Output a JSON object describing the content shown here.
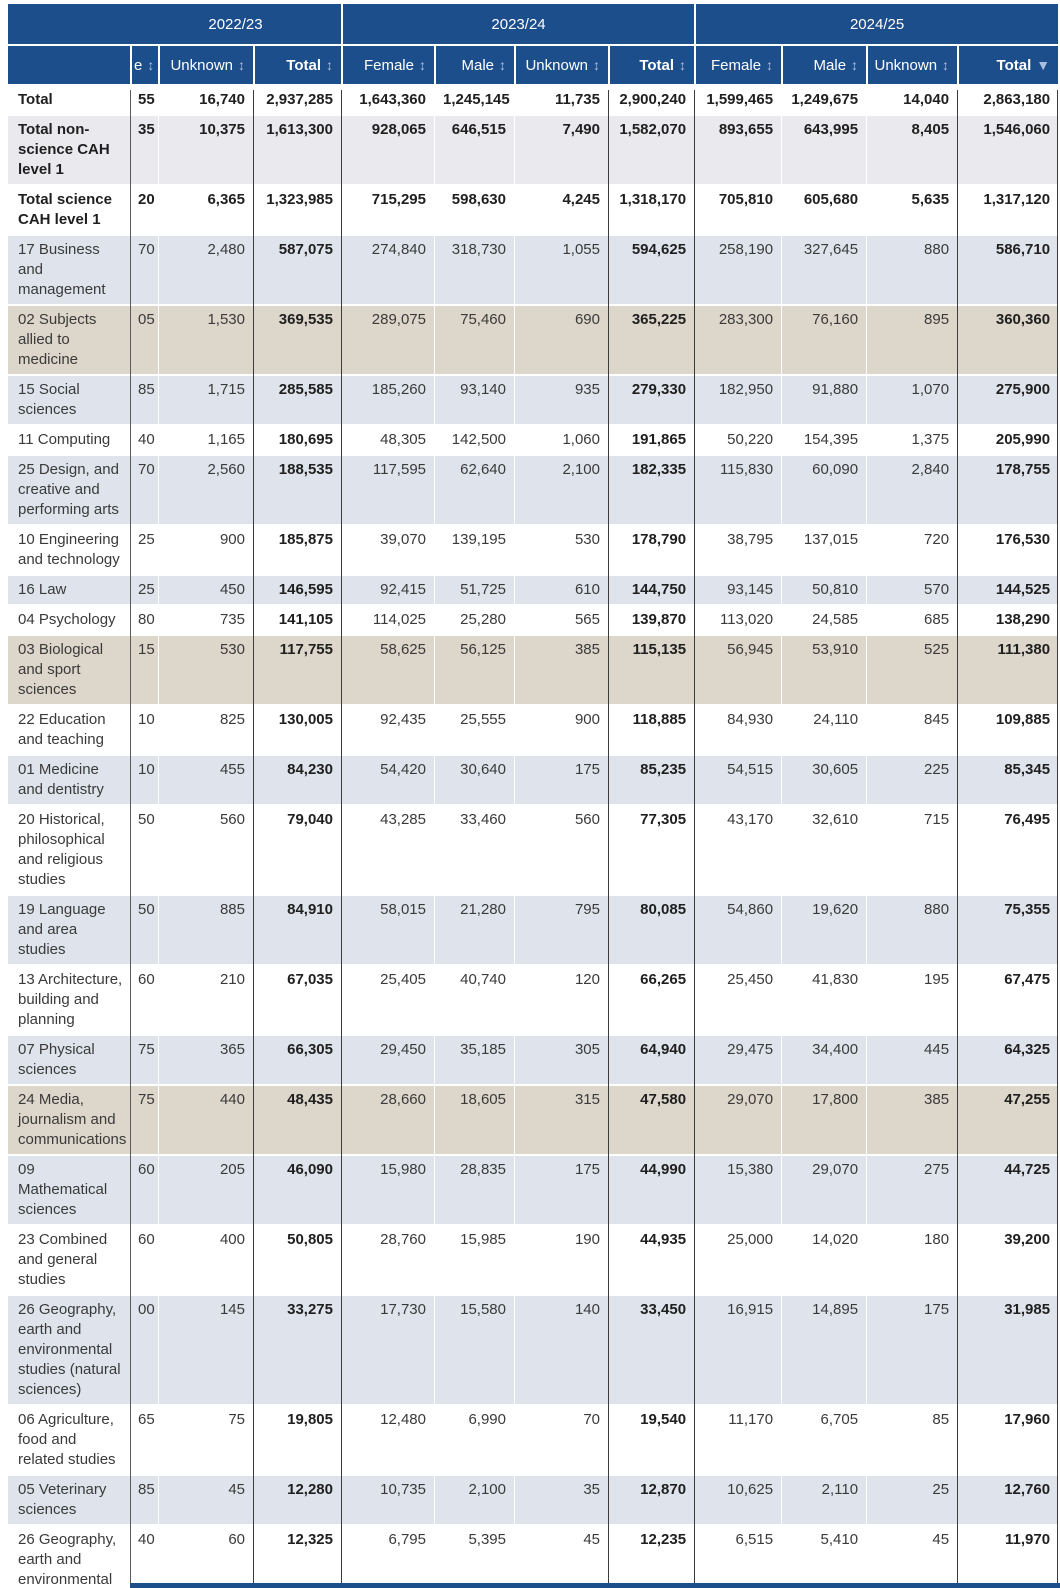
{
  "colors": {
    "header_bg": "#1d4e8c",
    "row_shaded_blue": "#dfe4ec",
    "row_shaded_tan": "#ddd6ca",
    "row_shaded_gray": "#e9e9ee",
    "sort_arrow": "#aabfdd"
  },
  "icons": {
    "sort_both": "↕",
    "sort_desc": "▼"
  },
  "table": {
    "year_groups": [
      {
        "label": "2022/23",
        "span": 3
      },
      {
        "label": "2023/24",
        "span": 4
      },
      {
        "label": "2024/25",
        "span": 4
      }
    ],
    "columns": [
      {
        "label": "e",
        "arrow": "both",
        "emphasis": false
      },
      {
        "label": "Unknown",
        "arrow": "both",
        "emphasis": false
      },
      {
        "label": "Total",
        "arrow": "both",
        "emphasis": true
      },
      {
        "label": "Female",
        "arrow": "both",
        "emphasis": false
      },
      {
        "label": "Male",
        "arrow": "both",
        "emphasis": false
      },
      {
        "label": "Unknown",
        "arrow": "both",
        "emphasis": false
      },
      {
        "label": "Total",
        "arrow": "both",
        "emphasis": true
      },
      {
        "label": "Female",
        "arrow": "both",
        "emphasis": false
      },
      {
        "label": "Male",
        "arrow": "both",
        "emphasis": false
      },
      {
        "label": "Unknown",
        "arrow": "both",
        "emphasis": false
      },
      {
        "label": "Total",
        "arrow": "desc",
        "emphasis": true
      }
    ],
    "rows": [
      {
        "label": "Total",
        "bold": true,
        "bg": "plain",
        "values": [
          "55",
          "16,740",
          "2,937,285",
          "1,643,360",
          "1,245,145",
          "11,735",
          "2,900,240",
          "1,599,465",
          "1,249,675",
          "14,040",
          "2,863,180"
        ]
      },
      {
        "label": "Total non-science CAH level 1",
        "bold": true,
        "bg": "gray",
        "values": [
          "35",
          "10,375",
          "1,613,300",
          "928,065",
          "646,515",
          "7,490",
          "1,582,070",
          "893,655",
          "643,995",
          "8,405",
          "1,546,060"
        ]
      },
      {
        "label": "Total science CAH level 1",
        "bold": true,
        "bg": "plain",
        "values": [
          "20",
          "6,365",
          "1,323,985",
          "715,295",
          "598,630",
          "4,245",
          "1,318,170",
          "705,810",
          "605,680",
          "5,635",
          "1,317,120"
        ]
      },
      {
        "label": "17 Business and management",
        "bold": false,
        "bg": "blue",
        "values": [
          "70",
          "2,480",
          "587,075",
          "274,840",
          "318,730",
          "1,055",
          "594,625",
          "258,190",
          "327,645",
          "880",
          "586,710"
        ]
      },
      {
        "label": "02 Subjects allied to medicine",
        "bold": false,
        "bg": "tan",
        "values": [
          "05",
          "1,530",
          "369,535",
          "289,075",
          "75,460",
          "690",
          "365,225",
          "283,300",
          "76,160",
          "895",
          "360,360"
        ]
      },
      {
        "label": "15 Social sciences",
        "bold": false,
        "bg": "blue",
        "values": [
          "85",
          "1,715",
          "285,585",
          "185,260",
          "93,140",
          "935",
          "279,330",
          "182,950",
          "91,880",
          "1,070",
          "275,900"
        ]
      },
      {
        "label": "11 Computing",
        "bold": false,
        "bg": "plain",
        "values": [
          "40",
          "1,165",
          "180,695",
          "48,305",
          "142,500",
          "1,060",
          "191,865",
          "50,220",
          "154,395",
          "1,375",
          "205,990"
        ]
      },
      {
        "label": "25 Design, and creative and performing arts",
        "bold": false,
        "bg": "blue",
        "values": [
          "70",
          "2,560",
          "188,535",
          "117,595",
          "62,640",
          "2,100",
          "182,335",
          "115,830",
          "60,090",
          "2,840",
          "178,755"
        ]
      },
      {
        "label": "10 Engineering and technology",
        "bold": false,
        "bg": "plain",
        "values": [
          "25",
          "900",
          "185,875",
          "39,070",
          "139,195",
          "530",
          "178,790",
          "38,795",
          "137,015",
          "720",
          "176,530"
        ]
      },
      {
        "label": "16 Law",
        "bold": false,
        "bg": "blue",
        "values": [
          "25",
          "450",
          "146,595",
          "92,415",
          "51,725",
          "610",
          "144,750",
          "93,145",
          "50,810",
          "570",
          "144,525"
        ]
      },
      {
        "label": "04 Psychology",
        "bold": false,
        "bg": "plain",
        "values": [
          "80",
          "735",
          "141,105",
          "114,025",
          "25,280",
          "565",
          "139,870",
          "113,020",
          "24,585",
          "685",
          "138,290"
        ]
      },
      {
        "label": "03 Biological and sport sciences",
        "bold": false,
        "bg": "tan",
        "values": [
          "15",
          "530",
          "117,755",
          "58,625",
          "56,125",
          "385",
          "115,135",
          "56,945",
          "53,910",
          "525",
          "111,380"
        ]
      },
      {
        "label": "22 Education and teaching",
        "bold": false,
        "bg": "plain",
        "values": [
          "10",
          "825",
          "130,005",
          "92,435",
          "25,555",
          "900",
          "118,885",
          "84,930",
          "24,110",
          "845",
          "109,885"
        ]
      },
      {
        "label": "01 Medicine and dentistry",
        "bold": false,
        "bg": "blue",
        "values": [
          "10",
          "455",
          "84,230",
          "54,420",
          "30,640",
          "175",
          "85,235",
          "54,515",
          "30,605",
          "225",
          "85,345"
        ]
      },
      {
        "label": "20 Historical, philosophical and religious studies",
        "bold": false,
        "bg": "plain",
        "values": [
          "50",
          "560",
          "79,040",
          "43,285",
          "33,460",
          "560",
          "77,305",
          "43,170",
          "32,610",
          "715",
          "76,495"
        ]
      },
      {
        "label": "19 Language and area studies",
        "bold": false,
        "bg": "blue",
        "values": [
          "50",
          "885",
          "84,910",
          "58,015",
          "21,280",
          "795",
          "80,085",
          "54,860",
          "19,620",
          "880",
          "75,355"
        ]
      },
      {
        "label": "13 Architecture, building and planning",
        "bold": false,
        "bg": "plain",
        "values": [
          "60",
          "210",
          "67,035",
          "25,405",
          "40,740",
          "120",
          "66,265",
          "25,450",
          "41,830",
          "195",
          "67,475"
        ]
      },
      {
        "label": "07 Physical sciences",
        "bold": false,
        "bg": "blue",
        "values": [
          "75",
          "365",
          "66,305",
          "29,450",
          "35,185",
          "305",
          "64,940",
          "29,475",
          "34,400",
          "445",
          "64,325"
        ]
      },
      {
        "label": "24 Media, journalism and communications",
        "bold": false,
        "bg": "tan",
        "values": [
          "75",
          "440",
          "48,435",
          "28,660",
          "18,605",
          "315",
          "47,580",
          "29,070",
          "17,800",
          "385",
          "47,255"
        ]
      },
      {
        "label": "09 Mathematical sciences",
        "bold": false,
        "bg": "blue",
        "values": [
          "60",
          "205",
          "46,090",
          "15,980",
          "28,835",
          "175",
          "44,990",
          "15,380",
          "29,070",
          "275",
          "44,725"
        ]
      },
      {
        "label": "23 Combined and general studies",
        "bold": false,
        "bg": "plain",
        "values": [
          "60",
          "400",
          "50,805",
          "28,760",
          "15,985",
          "190",
          "44,935",
          "25,000",
          "14,020",
          "180",
          "39,200"
        ]
      },
      {
        "label": "26 Geography, earth and environmental studies (natural sciences)",
        "bold": false,
        "bg": "blue",
        "values": [
          "00",
          "145",
          "33,275",
          "17,730",
          "15,580",
          "140",
          "33,450",
          "16,915",
          "14,895",
          "175",
          "31,985"
        ]
      },
      {
        "label": "06 Agriculture, food and related studies",
        "bold": false,
        "bg": "plain",
        "values": [
          "65",
          "75",
          "19,805",
          "12,480",
          "6,990",
          "70",
          "19,540",
          "11,170",
          "6,705",
          "85",
          "17,960"
        ]
      },
      {
        "label": "05 Veterinary sciences",
        "bold": false,
        "bg": "blue",
        "values": [
          "85",
          "45",
          "12,280",
          "10,735",
          "2,100",
          "35",
          "12,870",
          "10,625",
          "2,110",
          "25",
          "12,760"
        ]
      },
      {
        "label": "26 Geography, earth and environmental",
        "bold": false,
        "bg": "plain",
        "values": [
          "40",
          "60",
          "12,325",
          "6,795",
          "5,395",
          "45",
          "12,235",
          "6,515",
          "5,410",
          "45",
          "11,970"
        ]
      }
    ]
  }
}
